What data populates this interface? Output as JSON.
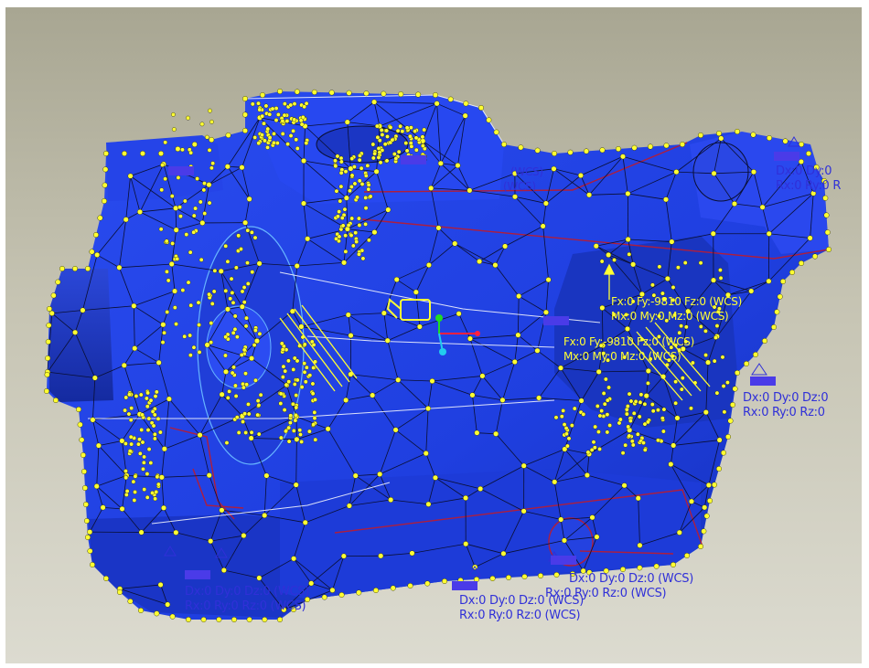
{
  "colors": {
    "background_top": "#a8a692",
    "background_bottom": "#dcdbd0",
    "model_fill": "#1f3fe0",
    "model_shade": "#1733b0",
    "mesh_edge": "#0a0f33",
    "mesh_node": "#ffff33",
    "constraint_label": "#3030d8",
    "constraint_tag": "#4a3be8",
    "feature_edge": "#b01e3c",
    "coord_x": "#ff2040",
    "coord_y": "#22dd22",
    "coord_z": "#22ccee",
    "mesh_lines": "#0a0f33"
  },
  "icons": {
    "coordinate_system": "csys-triad-icon",
    "load": "load-arrow-icon",
    "constraint": "constraint-marker-icon"
  },
  "constraints": [
    {
      "name": "constraint-top-right",
      "line1": "Dx:0 Dy:0",
      "line2": "Rx:0 Ry:0 R"
    },
    {
      "name": "constraint-right",
      "line1": "Dx:0 Dy:0 Dz:0",
      "line2": "Rx:0 Ry:0 Rz:0"
    },
    {
      "name": "constraint-bottom-center",
      "line1": "Dx:0 Dy:0 Dz:0 (WCS)",
      "line2": "Rx:0 Ry:0 Rz:0 (WCS)"
    },
    {
      "name": "constraint-bottom-right",
      "line1": "Dx:0 Dy:0 Dz:0 (WCS)",
      "line2": "Rx:0 Ry:0 Rz:0 (WCS)"
    },
    {
      "name": "constraint-bottom-left",
      "line1": "Dx:0 Dy:0 Dz:0 (WCS)",
      "line2": "Rx:0 Ry:0 Rz:0 (WCS)"
    },
    {
      "name": "constraint-top-center",
      "line1": "(WCS)",
      "line2": "(WCS)"
    }
  ],
  "loads": [
    {
      "name": "load-label-1",
      "text": "Fx:0 Fy:-9810 Fz:0 (WCS)"
    },
    {
      "name": "load-label-2",
      "text": "Mx:0 My:0 Mz:0 (WCS)"
    }
  ]
}
